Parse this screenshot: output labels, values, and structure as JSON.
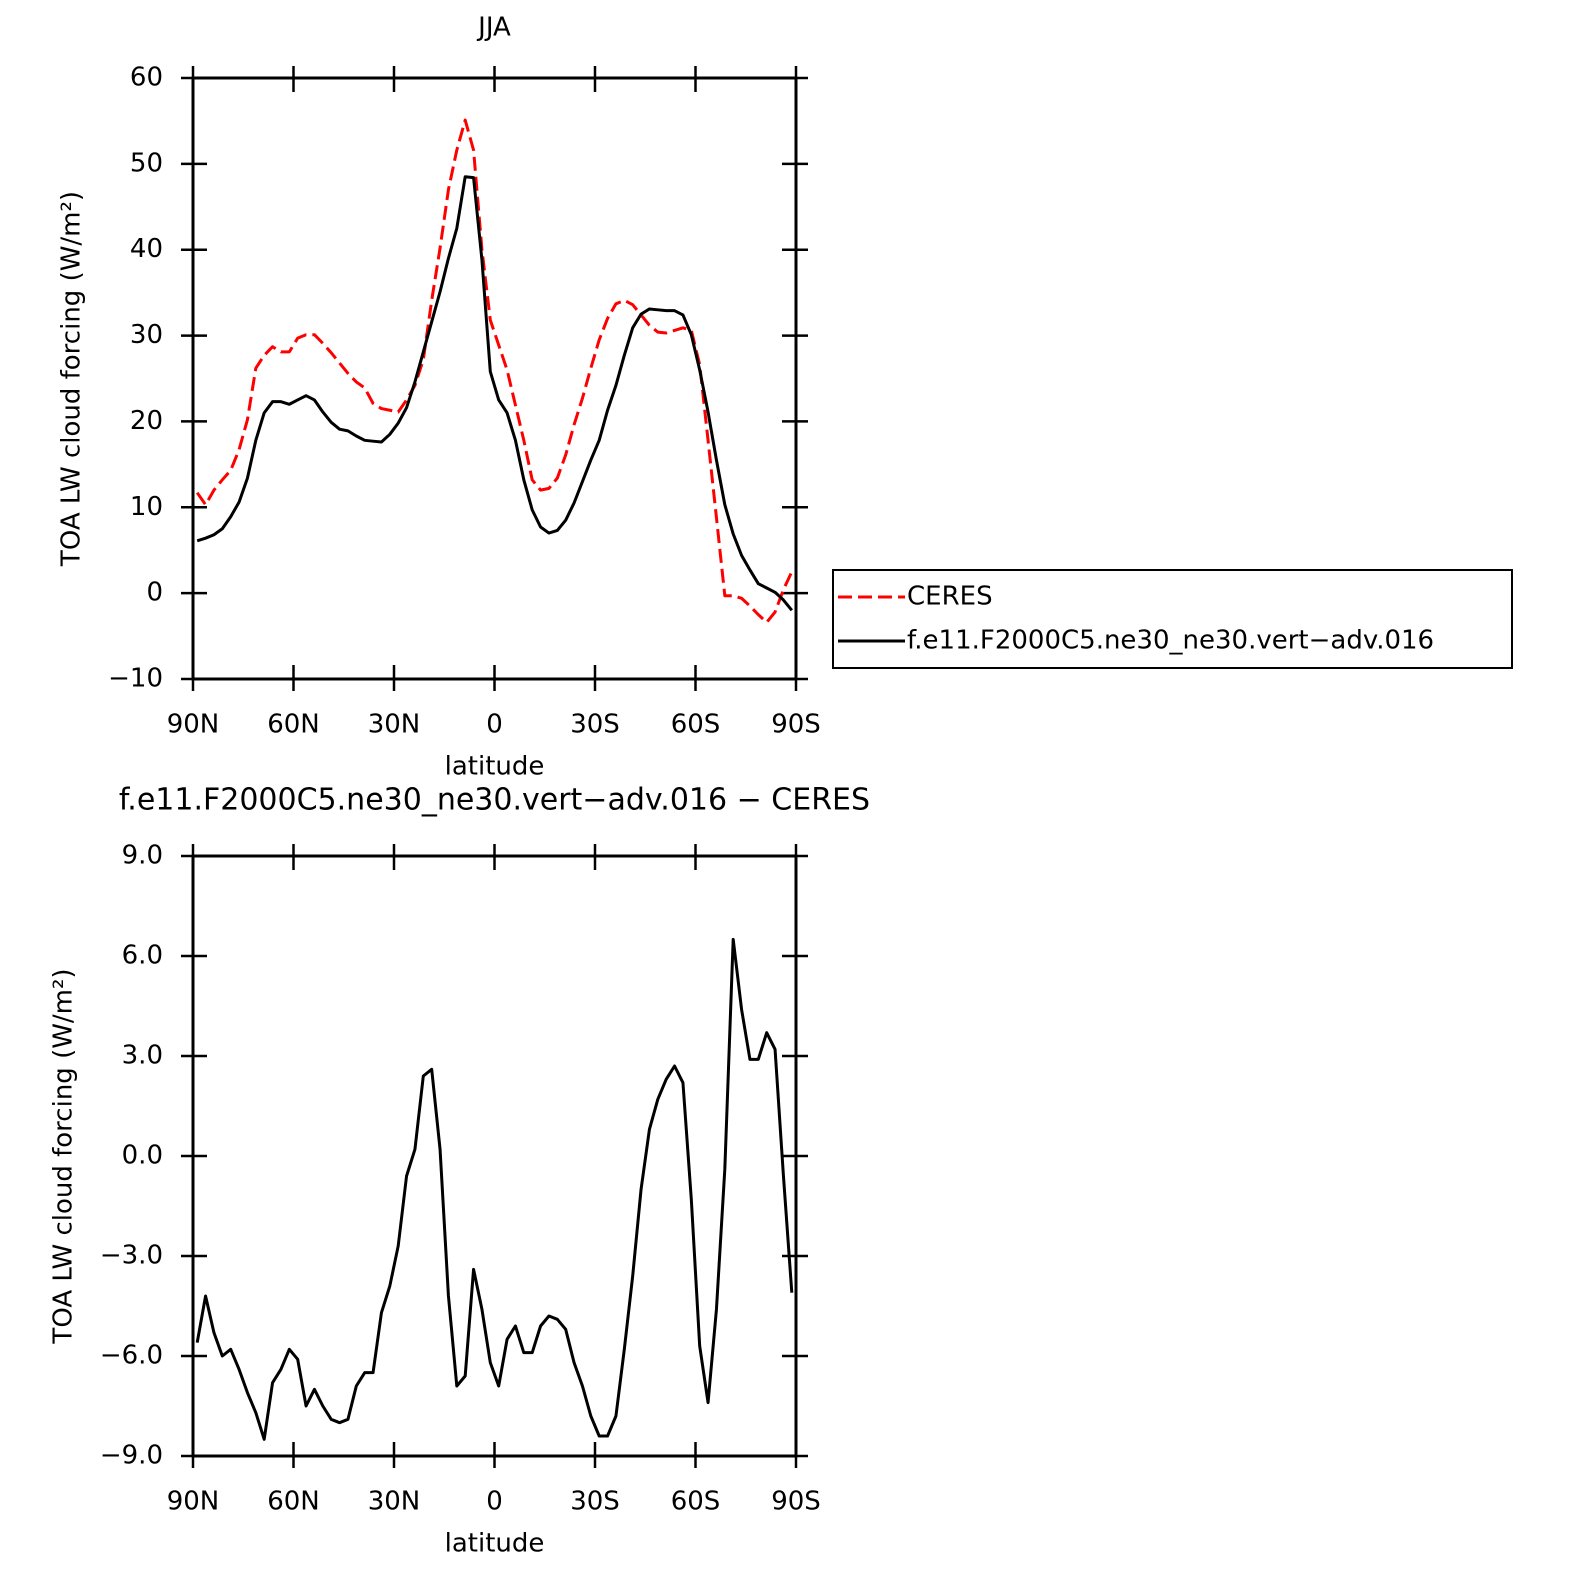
{
  "chart_data": [
    {
      "type": "line",
      "title": "JJA",
      "xlabel": "latitude",
      "ylabel": "TOA LW cloud forcing (W/m²)",
      "x": [
        88.75,
        86.25,
        83.75,
        81.25,
        78.75,
        76.25,
        73.75,
        71.25,
        68.75,
        66.25,
        63.75,
        61.25,
        58.75,
        56.25,
        53.75,
        51.25,
        48.75,
        46.25,
        43.75,
        41.25,
        38.75,
        36.25,
        33.75,
        31.25,
        28.75,
        26.25,
        23.75,
        21.25,
        18.75,
        16.25,
        13.75,
        11.25,
        8.75,
        6.25,
        3.75,
        1.25,
        -1.25,
        -3.75,
        -6.25,
        -8.75,
        -11.25,
        -13.75,
        -16.25,
        -18.75,
        -21.25,
        -23.75,
        -26.25,
        -28.75,
        -31.25,
        -33.75,
        -36.25,
        -38.75,
        -41.25,
        -43.75,
        -46.25,
        -48.75,
        -51.25,
        -53.75,
        -56.25,
        -58.75,
        -61.25,
        -63.75,
        -66.25,
        -68.75,
        -71.25,
        -73.75,
        -76.25,
        -78.75,
        -81.25,
        -83.75,
        -86.25,
        -88.75
      ],
      "series": [
        {
          "name": "CERES",
          "color": "#ff0000",
          "line_style": "dashed",
          "values": [
            11.7,
            10.3,
            12.0,
            13.2,
            14.3,
            16.7,
            20.2,
            26.2,
            27.7,
            28.7,
            28.1,
            28.1,
            29.7,
            30.1,
            30.1,
            29.1,
            28.0,
            26.8,
            25.6,
            24.6,
            23.9,
            22.1,
            21.5,
            21.3,
            21.1,
            22.5,
            24.2,
            27.2,
            34.1,
            40.2,
            47.0,
            51.6,
            55.1,
            51.6,
            40.0,
            31.8,
            28.9,
            26.0,
            21.9,
            17.8,
            13.2,
            12.0,
            12.2,
            13.4,
            16.1,
            19.6,
            22.7,
            26.2,
            29.5,
            32.0,
            33.7,
            34.1,
            33.6,
            32.4,
            31.2,
            30.4,
            30.3,
            30.6,
            30.9,
            30.6,
            26.6,
            17.8,
            8.8,
            -0.3,
            -0.3,
            -0.6,
            -1.5,
            -2.5,
            -3.4,
            -2.2,
            0.4,
            2.5
          ]
        },
        {
          "name": "f.e11.F2000C5.ne30_ne30.vert−adv.016",
          "color": "#000000",
          "line_style": "solid",
          "values": [
            6.1,
            6.4,
            6.8,
            7.5,
            8.9,
            10.6,
            13.4,
            17.8,
            21.0,
            22.3,
            22.3,
            22.0,
            22.5,
            23.0,
            22.5,
            21.1,
            19.9,
            19.1,
            18.9,
            18.3,
            17.8,
            17.7,
            17.6,
            18.5,
            19.8,
            21.6,
            24.6,
            28.1,
            31.6,
            35.1,
            39.0,
            42.5,
            48.5,
            48.4,
            38.8,
            25.8,
            22.5,
            21.0,
            17.8,
            13.2,
            9.7,
            7.7,
            7.0,
            7.3,
            8.5,
            10.5,
            13.0,
            15.5,
            17.8,
            21.3,
            24.2,
            27.7,
            30.9,
            32.5,
            33.1,
            33.0,
            32.9,
            32.9,
            32.4,
            30.1,
            26.0,
            21.1,
            15.5,
            10.3,
            6.9,
            4.4,
            2.7,
            1.1,
            0.6,
            0.1,
            -0.8,
            -2.0
          ]
        }
      ],
      "xlim": [
        90,
        -90
      ],
      "xticks": [
        {
          "value": 90,
          "label": "90N"
        },
        {
          "value": 60,
          "label": "60N"
        },
        {
          "value": 30,
          "label": "30N"
        },
        0,
        {
          "value": -30,
          "label": "30S"
        },
        {
          "value": -60,
          "label": "60S"
        },
        {
          "value": -90,
          "label": "90S"
        }
      ],
      "ylim": [
        -10,
        60
      ],
      "yticks": [
        {
          "value": -10,
          "label": "−10"
        },
        0,
        10,
        20,
        30,
        40,
        50,
        60
      ],
      "legend": "right"
    },
    {
      "type": "line",
      "title": "f.e11.F2000C5.ne30_ne30.vert−adv.016 − CERES",
      "xlabel": "latitude",
      "ylabel": "TOA LW cloud forcing (W/m²)",
      "x": [
        88.75,
        86.25,
        83.75,
        81.25,
        78.75,
        76.25,
        73.75,
        71.25,
        68.75,
        66.25,
        63.75,
        61.25,
        58.75,
        56.25,
        53.75,
        51.25,
        48.75,
        46.25,
        43.75,
        41.25,
        38.75,
        36.25,
        33.75,
        31.25,
        28.75,
        26.25,
        23.75,
        21.25,
        18.75,
        16.25,
        13.75,
        11.25,
        8.75,
        6.25,
        3.75,
        1.25,
        -1.25,
        -3.75,
        -6.25,
        -8.75,
        -11.25,
        -13.75,
        -16.25,
        -18.75,
        -21.25,
        -23.75,
        -26.25,
        -28.75,
        -31.25,
        -33.75,
        -36.25,
        -38.75,
        -41.25,
        -43.75,
        -46.25,
        -48.75,
        -51.25,
        -53.75,
        -56.25,
        -58.75,
        -61.25,
        -63.75,
        -66.25,
        -68.75,
        -71.25,
        -73.75,
        -76.25,
        -78.75,
        -81.25,
        -83.75,
        -86.25,
        -88.75
      ],
      "series": [
        {
          "color": "#000000",
          "line_style": "solid",
          "values": [
            -5.6,
            -4.2,
            -5.3,
            -6.0,
            -5.8,
            -6.4,
            -7.1,
            -7.7,
            -8.5,
            -6.8,
            -6.4,
            -5.8,
            -6.1,
            -7.5,
            -7.0,
            -7.5,
            -7.9,
            -8.0,
            -7.9,
            -6.9,
            -6.5,
            -6.5,
            -4.7,
            -3.9,
            -2.7,
            -0.6,
            0.2,
            2.4,
            2.6,
            0.2,
            -4.2,
            -6.9,
            -6.6,
            -3.4,
            -4.6,
            -6.2,
            -6.9,
            -5.5,
            -5.1,
            -5.9,
            -5.9,
            -5.1,
            -4.8,
            -4.9,
            -5.2,
            -6.2,
            -6.9,
            -7.8,
            -8.4,
            -8.4,
            -7.8,
            -5.8,
            -3.6,
            -1.0,
            0.8,
            1.7,
            2.3,
            2.7,
            2.2,
            -1.3,
            -5.7,
            -7.4,
            -4.6,
            -0.4,
            6.5,
            4.4,
            2.9,
            2.9,
            3.7,
            3.2,
            -0.6,
            -4.1
          ]
        }
      ],
      "xlim": [
        90,
        -90
      ],
      "xticks": [
        {
          "value": 90,
          "label": "90N"
        },
        {
          "value": 60,
          "label": "60N"
        },
        {
          "value": 30,
          "label": "30N"
        },
        0,
        {
          "value": -30,
          "label": "30S"
        },
        {
          "value": -60,
          "label": "60S"
        },
        {
          "value": -90,
          "label": "90S"
        }
      ],
      "ylim": [
        -9,
        9
      ],
      "yticks": [
        {
          "value": -9,
          "label": "−9.0"
        },
        {
          "value": -6,
          "label": "−6.0"
        },
        {
          "value": -3,
          "label": "−3.0"
        },
        {
          "value": 0,
          "label": "0.0"
        },
        {
          "value": 3,
          "label": "3.0"
        },
        {
          "value": 6,
          "label": "6.0"
        },
        {
          "value": 9,
          "label": "9.0"
        }
      ]
    }
  ]
}
